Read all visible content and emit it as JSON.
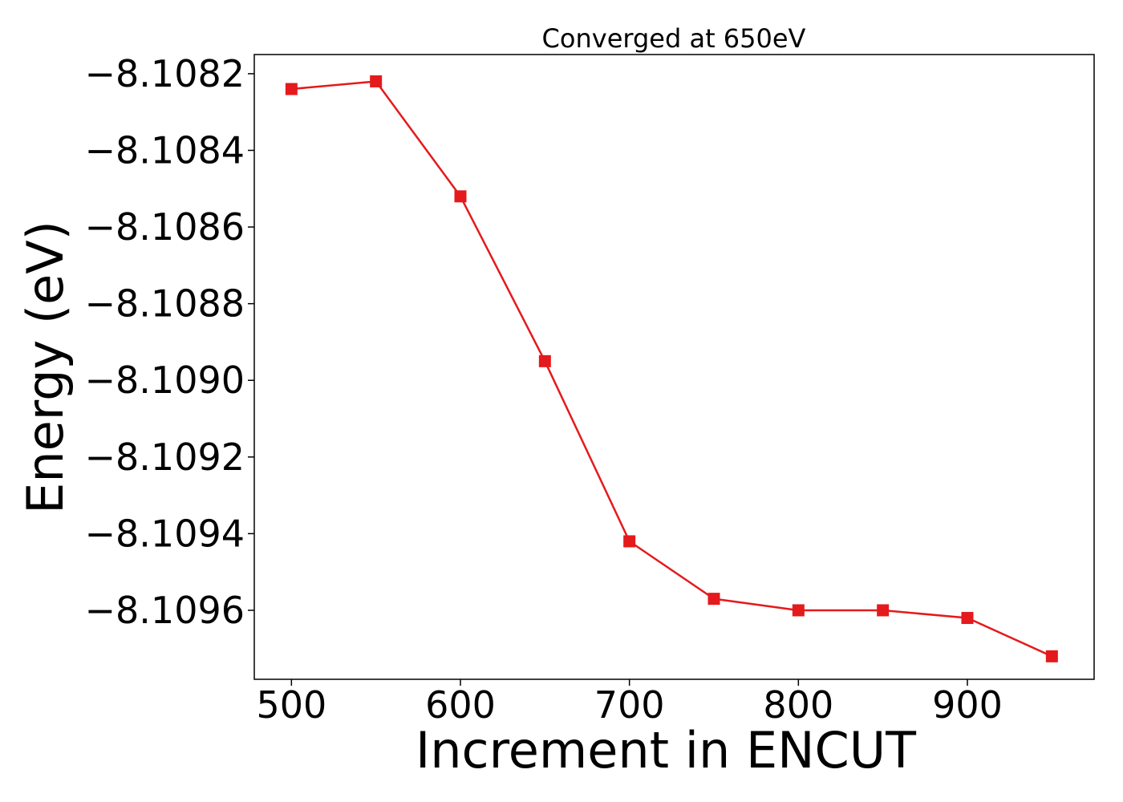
{
  "chart_data": {
    "type": "line",
    "title": "Converged at 650eV",
    "xlabel": "Increment in ENCUT",
    "ylabel": "Energy (eV)",
    "x": [
      500,
      550,
      600,
      650,
      700,
      750,
      800,
      850,
      900,
      950
    ],
    "series": [
      {
        "values": [
          -8.10824,
          -8.10822,
          -8.10852,
          -8.10895,
          -8.10942,
          -8.10957,
          -8.1096,
          -8.1096,
          -8.10962,
          -8.10972
        ],
        "color": "#e41a1c",
        "marker": "square"
      }
    ],
    "xlim": [
      478,
      975
    ],
    "ylim": [
      -8.10978,
      -8.10815
    ],
    "xticks": [
      500,
      600,
      700,
      800,
      900
    ],
    "xtick_labels": [
      "500",
      "600",
      "700",
      "800",
      "900"
    ],
    "yticks": [
      -8.1082,
      -8.1084,
      -8.1086,
      -8.1088,
      -8.109,
      -8.1092,
      -8.1094,
      -8.1096
    ],
    "ytick_labels": [
      "−8.1082",
      "−8.1084",
      "−8.1086",
      "−8.1088",
      "−8.1090",
      "−8.1092",
      "−8.1094",
      "−8.1096"
    ],
    "grid": false,
    "legend": "none"
  }
}
